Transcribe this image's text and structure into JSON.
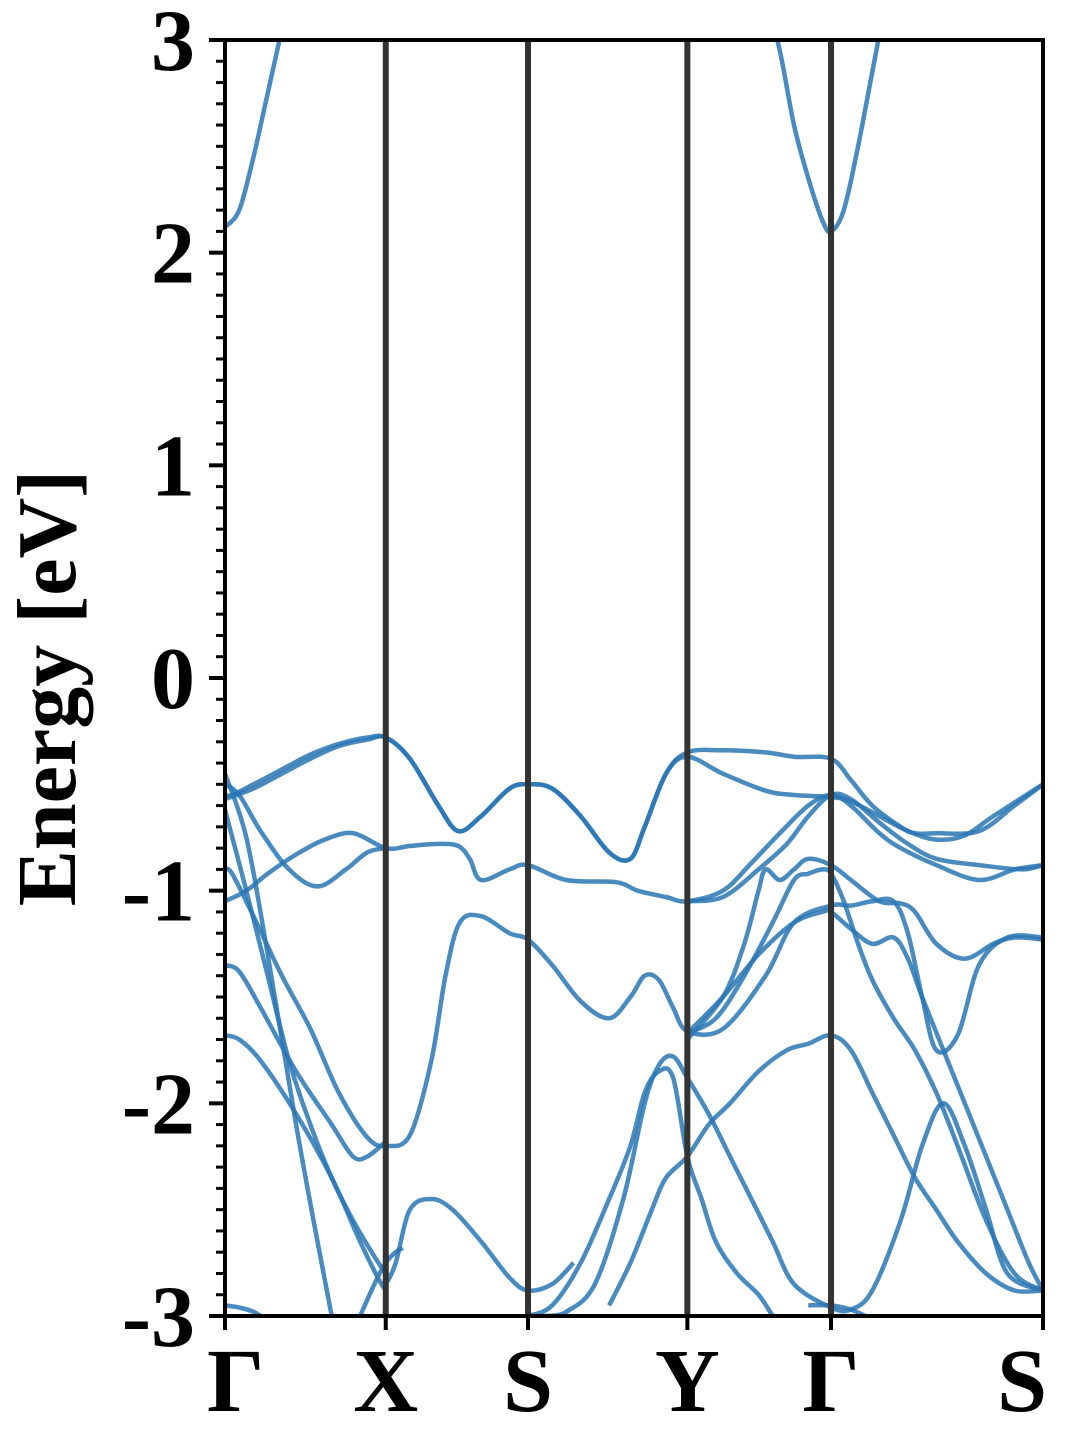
{
  "chart_data": {
    "type": "line",
    "title": "",
    "xlabel": "",
    "ylabel": "Energy [eV]",
    "ylim": [
      -3,
      3
    ],
    "yticks": [
      -3,
      -2,
      -1,
      0,
      1,
      2,
      3
    ],
    "ytick_labels": [
      "-3",
      "-2",
      "-1",
      "0",
      "1",
      "2",
      "3"
    ],
    "minor_ytick_step": 0.1,
    "xrange": [
      0,
      5.75
    ],
    "kpoints": [
      {
        "label": "Γ",
        "x": 0.0
      },
      {
        "label": "X",
        "x": 1.13
      },
      {
        "label": "S",
        "x": 2.13
      },
      {
        "label": "Y",
        "x": 3.25
      },
      {
        "label": "Γ",
        "x": 4.26
      },
      {
        "label": "S",
        "x": 5.75
      }
    ],
    "band_color": "#2a77b4",
    "kpoint_line_color": "#333333",
    "grid": false,
    "series": [
      {
        "x": [
          0,
          0.1,
          0.2,
          0.3,
          0.4,
          0.45
        ],
        "values": [
          2.12,
          2.2,
          2.45,
          2.75,
          3.05,
          3.2
        ]
      },
      {
        "x": [
          3.8,
          3.9,
          4.0,
          4.1,
          4.2,
          4.26,
          4.35,
          4.45,
          4.55,
          4.65
        ],
        "values": [
          3.2,
          2.95,
          2.6,
          2.35,
          2.15,
          2.1,
          2.2,
          2.5,
          2.85,
          3.2
        ]
      },
      {
        "x": [
          0,
          0.05,
          0.2,
          0.4,
          0.6,
          0.8,
          1.0,
          1.13,
          1.3,
          1.5,
          1.64,
          1.8,
          2.0,
          2.13,
          2.3,
          2.5,
          2.7,
          2.85,
          2.95,
          3.1,
          3.25,
          3.5,
          3.8,
          4.0,
          4.26,
          4.4,
          4.55,
          4.75,
          4.85,
          5.0,
          5.3,
          5.55,
          5.75
        ],
        "values": [
          -0.55,
          -0.55,
          -0.5,
          -0.43,
          -0.36,
          -0.31,
          -0.28,
          -0.28,
          -0.38,
          -0.6,
          -0.72,
          -0.65,
          -0.52,
          -0.5,
          -0.52,
          -0.65,
          -0.82,
          -0.85,
          -0.7,
          -0.45,
          -0.35,
          -0.34,
          -0.35,
          -0.37,
          -0.38,
          -0.48,
          -0.6,
          -0.7,
          -0.73,
          -0.73,
          -0.72,
          -0.6,
          -0.5
        ]
      },
      {
        "x": [
          0,
          0.2,
          0.4,
          0.6,
          0.8,
          1.0,
          1.13,
          1.3,
          1.5,
          1.64,
          1.8,
          2.0,
          2.13,
          2.3,
          2.5,
          2.7,
          2.85,
          2.95,
          3.1,
          3.25,
          3.5,
          3.8,
          4.0,
          4.26,
          4.4,
          4.6,
          4.8,
          5.0,
          5.2,
          5.4,
          5.75
        ],
        "values": [
          -0.57,
          -0.52,
          -0.45,
          -0.38,
          -0.32,
          -0.29,
          -0.28,
          -0.38,
          -0.6,
          -0.72,
          -0.65,
          -0.52,
          -0.5,
          -0.52,
          -0.65,
          -0.82,
          -0.85,
          -0.7,
          -0.45,
          -0.37,
          -0.45,
          -0.53,
          -0.55,
          -0.56,
          -0.58,
          -0.65,
          -0.72,
          -0.76,
          -0.74,
          -0.65,
          -0.5
        ]
      },
      {
        "x": [
          0,
          0.15,
          0.3,
          0.5,
          0.7,
          0.9,
          1.13,
          1.3,
          1.5,
          1.64,
          1.72,
          1.8,
          2.0,
          2.13,
          2.4,
          2.75,
          2.9,
          3.1,
          3.25,
          3.5,
          3.7,
          3.9,
          4.1,
          4.26,
          4.4,
          4.6,
          4.75,
          5.0,
          5.3,
          5.55,
          5.75
        ],
        "values": [
          -1.05,
          -1.0,
          -0.92,
          -0.83,
          -0.76,
          -0.73,
          -0.8,
          -0.79,
          -0.78,
          -0.79,
          -0.85,
          -0.95,
          -0.9,
          -0.88,
          -0.95,
          -0.96,
          -1.0,
          -1.03,
          -1.05,
          -1.0,
          -0.87,
          -0.73,
          -0.6,
          -0.55,
          -0.6,
          -0.73,
          -0.8,
          -0.88,
          -0.95,
          -0.9,
          -0.88
        ]
      },
      {
        "x": [
          0,
          0.1,
          0.25,
          0.45,
          0.65,
          0.85,
          1.0,
          1.13
        ],
        "values": [
          -0.5,
          -0.55,
          -0.72,
          -0.9,
          -0.98,
          -0.9,
          -0.82,
          -0.8
        ]
      },
      {
        "x": [
          3.25,
          3.5,
          3.75,
          3.95,
          4.1,
          4.26,
          4.4,
          4.6,
          4.8,
          5.0,
          5.3,
          5.6,
          5.75
        ],
        "values": [
          -1.05,
          -1.03,
          -0.9,
          -0.78,
          -0.65,
          -0.55,
          -0.57,
          -0.68,
          -0.78,
          -0.85,
          -0.88,
          -0.9,
          -0.88
        ]
      },
      {
        "x": [
          3.25,
          3.5,
          3.65,
          3.75,
          3.8,
          3.9,
          4.0,
          4.1,
          4.26,
          4.4,
          4.6,
          4.75,
          4.85,
          5.0,
          5.2,
          5.4,
          5.55,
          5.75
        ],
        "values": [
          -1.7,
          -1.5,
          -1.25,
          -1.0,
          -0.9,
          -0.95,
          -0.9,
          -0.85,
          -0.88,
          -0.95,
          -1.05,
          -1.06,
          -1.1,
          -1.25,
          -1.32,
          -1.25,
          -1.22,
          -1.23
        ]
      },
      {
        "x": [
          0,
          0.05,
          0.2,
          0.4,
          0.6,
          0.8,
          1.0,
          1.13,
          1.3,
          1.45,
          1.55,
          1.65,
          1.8,
          2.0,
          2.13,
          2.3,
          2.5,
          2.7,
          2.85,
          2.95,
          3.05,
          3.15,
          3.25,
          3.5,
          3.8,
          4.0,
          4.26,
          4.4,
          4.55,
          4.7,
          4.8,
          4.9,
          5.0,
          5.15,
          5.3,
          5.5,
          5.75
        ],
        "values": [
          -0.9,
          -0.92,
          -1.12,
          -1.4,
          -1.65,
          -1.95,
          -2.16,
          -2.2,
          -2.15,
          -1.8,
          -1.4,
          -1.15,
          -1.12,
          -1.2,
          -1.23,
          -1.35,
          -1.52,
          -1.6,
          -1.5,
          -1.4,
          -1.42,
          -1.55,
          -1.66,
          -1.65,
          -1.4,
          -1.15,
          -1.07,
          -1.07,
          -1.05,
          -1.05,
          -1.2,
          -1.5,
          -1.75,
          -1.68,
          -1.35,
          -1.22,
          -1.22
        ]
      },
      {
        "x": [
          3.25,
          3.45,
          3.65,
          3.85,
          4.0,
          4.1,
          4.2,
          4.26,
          4.35,
          4.45,
          4.55,
          4.7,
          4.85,
          5.0,
          5.15,
          5.35,
          5.55,
          5.75
        ],
        "values": [
          -1.67,
          -1.6,
          -1.4,
          -1.15,
          -0.95,
          -0.92,
          -0.9,
          -0.92,
          -1.05,
          -1.25,
          -1.42,
          -1.6,
          -1.75,
          -1.95,
          -2.2,
          -2.55,
          -2.8,
          -2.88
        ]
      },
      {
        "x": [
          3.25,
          3.5,
          3.75,
          4.0,
          4.2,
          4.26,
          4.4,
          4.55,
          4.7,
          4.8,
          4.9,
          5.05,
          5.2,
          5.35,
          5.5,
          5.65,
          5.75
        ],
        "values": [
          -1.67,
          -1.5,
          -1.3,
          -1.15,
          -1.1,
          -1.1,
          -1.18,
          -1.25,
          -1.22,
          -1.32,
          -1.5,
          -1.75,
          -2.0,
          -2.25,
          -2.5,
          -2.75,
          -2.88
        ]
      },
      {
        "x": [
          0,
          0.1,
          0.25,
          0.5,
          0.75,
          0.9,
          1.0,
          1.13
        ],
        "values": [
          -1.35,
          -1.38,
          -1.55,
          -1.85,
          -2.1,
          -2.25,
          -2.25,
          -2.18
        ]
      },
      {
        "x": [
          0,
          0.15,
          0.3,
          0.45,
          0.6,
          0.75,
          0.9,
          1.05,
          1.13
        ],
        "values": [
          -0.62,
          -1.0,
          -1.4,
          -1.8,
          -2.1,
          -2.35,
          -2.55,
          -2.72,
          -2.8
        ]
      },
      {
        "x": [
          0,
          0.1,
          0.25,
          0.5,
          0.75,
          0.95,
          1.1,
          1.13,
          1.2,
          1.3,
          1.45,
          1.6,
          1.8,
          2.0,
          2.13,
          2.3,
          2.45
        ],
        "values": [
          -1.68,
          -1.7,
          -1.8,
          -2.05,
          -2.35,
          -2.65,
          -2.85,
          -2.85,
          -2.75,
          -2.5,
          -2.45,
          -2.5,
          -2.65,
          -2.82,
          -2.88,
          -2.85,
          -2.75
        ]
      },
      {
        "x": [
          0,
          0.15,
          0.3,
          0.5,
          0.65,
          0.75
        ],
        "values": [
          -0.45,
          -0.75,
          -1.3,
          -2.1,
          -2.65,
          -3.0
        ]
      },
      {
        "x": [
          0.95,
          1.05,
          1.13,
          1.2,
          1.25
        ],
        "values": [
          -3.0,
          -2.85,
          -2.75,
          -2.7,
          -2.68
        ]
      },
      {
        "x": [
          2.25,
          2.4,
          2.6,
          2.8,
          2.95,
          3.05,
          3.15,
          3.25,
          3.4,
          3.55,
          3.7,
          3.85,
          4.0,
          4.26,
          4.4,
          4.55,
          4.75,
          4.9,
          5.05,
          5.2,
          5.35,
          5.5,
          5.75
        ],
        "values": [
          -3.0,
          -2.98,
          -2.85,
          -2.45,
          -2.0,
          -1.82,
          -1.78,
          -1.88,
          -2.05,
          -2.25,
          -2.45,
          -2.65,
          -2.85,
          -2.96,
          -2.97,
          -2.88,
          -2.55,
          -2.2,
          -2.0,
          -2.2,
          -2.5,
          -2.8,
          -2.88
        ]
      },
      {
        "x": [
          2.13,
          2.3,
          2.5,
          2.7,
          2.85,
          2.95,
          3.05,
          3.15,
          3.25,
          3.35,
          3.45,
          3.6,
          3.75,
          3.85
        ],
        "values": [
          -3.0,
          -2.95,
          -2.75,
          -2.45,
          -2.2,
          -1.95,
          -1.85,
          -1.88,
          -2.25,
          -2.45,
          -2.65,
          -2.8,
          -2.9,
          -3.0
        ]
      },
      {
        "x": [
          2.7,
          2.85,
          3.0,
          3.1,
          3.25,
          3.4,
          3.55,
          3.75,
          3.95,
          4.1,
          4.26,
          4.4,
          4.55,
          4.7,
          4.85,
          5.0,
          5.15,
          5.35,
          5.55,
          5.75
        ],
        "values": [
          -2.95,
          -2.75,
          -2.5,
          -2.35,
          -2.25,
          -2.1,
          -2.0,
          -1.85,
          -1.75,
          -1.72,
          -1.68,
          -1.75,
          -1.95,
          -2.15,
          -2.35,
          -2.5,
          -2.65,
          -2.8,
          -2.88,
          -2.88
        ]
      },
      {
        "x": [
          0,
          0.1,
          0.2,
          0.25
        ],
        "values": [
          -2.95,
          -2.96,
          -2.98,
          -3.0
        ]
      },
      {
        "x": [
          4.1,
          4.26,
          4.4,
          4.5
        ],
        "values": [
          -2.95,
          -2.95,
          -2.97,
          -3.0
        ]
      }
    ]
  }
}
